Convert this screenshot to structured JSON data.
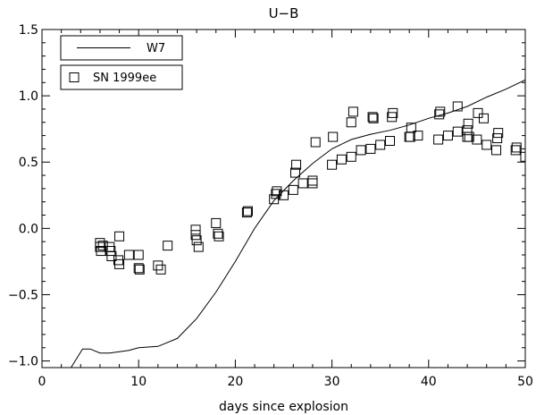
{
  "chart_data": {
    "type": "scatter",
    "title": "U−B",
    "xlabel": "days since explosion",
    "ylabel": "",
    "xlim": [
      0,
      50
    ],
    "ylim": [
      -1.05,
      1.5
    ],
    "x_ticks": [
      0,
      10,
      20,
      30,
      40,
      50
    ],
    "x_tick_labels": [
      "0",
      "10",
      "20",
      "30",
      "40",
      "50"
    ],
    "y_ticks": [
      -1.0,
      -0.5,
      0.0,
      0.5,
      1.0,
      1.5
    ],
    "y_tick_labels": [
      "−1.0",
      "−0.5",
      "0.0",
      "0.5",
      "1.0",
      "1.5"
    ],
    "legend": {
      "placement": "top-left",
      "entries": [
        "W7",
        "SN 1999ee"
      ]
    },
    "series": [
      {
        "name": "W7",
        "style": "line",
        "points": [
          [
            3,
            -1.05
          ],
          [
            4.2,
            -0.91
          ],
          [
            5,
            -0.91
          ],
          [
            6,
            -0.94
          ],
          [
            7,
            -0.94
          ],
          [
            8,
            -0.93
          ],
          [
            9,
            -0.92
          ],
          [
            10,
            -0.9
          ],
          [
            12,
            -0.89
          ],
          [
            14,
            -0.83
          ],
          [
            16,
            -0.68
          ],
          [
            18,
            -0.48
          ],
          [
            20,
            -0.25
          ],
          [
            22,
            0.0
          ],
          [
            24,
            0.21
          ],
          [
            26,
            0.36
          ],
          [
            28,
            0.49
          ],
          [
            30,
            0.6
          ],
          [
            32,
            0.67
          ],
          [
            34,
            0.71
          ],
          [
            36,
            0.74
          ],
          [
            38,
            0.78
          ],
          [
            40,
            0.83
          ],
          [
            42,
            0.87
          ],
          [
            44,
            0.92
          ],
          [
            46,
            0.99
          ],
          [
            48,
            1.05
          ],
          [
            50,
            1.12
          ]
        ]
      },
      {
        "name": "SN 1999ee",
        "style": "square-markers",
        "points": [
          [
            6.0,
            -0.11
          ],
          [
            6.0,
            -0.14
          ],
          [
            6.1,
            -0.17
          ],
          [
            6.3,
            -0.13
          ],
          [
            7.0,
            -0.14
          ],
          [
            7.1,
            -0.17
          ],
          [
            7.2,
            -0.21
          ],
          [
            7.9,
            -0.24
          ],
          [
            8.0,
            -0.27
          ],
          [
            8.0,
            -0.06
          ],
          [
            9.0,
            -0.2
          ],
          [
            10.0,
            -0.2
          ],
          [
            10.0,
            -0.3
          ],
          [
            10.1,
            -0.31
          ],
          [
            12.0,
            -0.28
          ],
          [
            12.3,
            -0.31
          ],
          [
            13.0,
            -0.13
          ],
          [
            15.9,
            -0.01
          ],
          [
            15.9,
            -0.05
          ],
          [
            16.0,
            -0.09
          ],
          [
            16.2,
            -0.14
          ],
          [
            18.0,
            0.04
          ],
          [
            18.2,
            -0.04
          ],
          [
            18.3,
            -0.06
          ],
          [
            21.2,
            0.12
          ],
          [
            21.3,
            0.13
          ],
          [
            24.0,
            0.22
          ],
          [
            24.2,
            0.26
          ],
          [
            24.3,
            0.28
          ],
          [
            25.0,
            0.25
          ],
          [
            26.0,
            0.29
          ],
          [
            26.2,
            0.42
          ],
          [
            26.3,
            0.48
          ],
          [
            27.0,
            0.34
          ],
          [
            28.0,
            0.36
          ],
          [
            28.0,
            0.34
          ],
          [
            28.3,
            0.65
          ],
          [
            30.0,
            0.48
          ],
          [
            30.1,
            0.69
          ],
          [
            31.0,
            0.52
          ],
          [
            32.0,
            0.54
          ],
          [
            32.0,
            0.8
          ],
          [
            32.2,
            0.88
          ],
          [
            33.0,
            0.59
          ],
          [
            34.0,
            0.6
          ],
          [
            34.2,
            0.84
          ],
          [
            34.3,
            0.83
          ],
          [
            35.0,
            0.63
          ],
          [
            36.0,
            0.66
          ],
          [
            36.2,
            0.84
          ],
          [
            36.3,
            0.87
          ],
          [
            38.0,
            0.69
          ],
          [
            38.1,
            0.69
          ],
          [
            38.2,
            0.76
          ],
          [
            38.9,
            0.7
          ],
          [
            41.0,
            0.67
          ],
          [
            41.1,
            0.86
          ],
          [
            41.2,
            0.88
          ],
          [
            42.0,
            0.7
          ],
          [
            43.0,
            0.73
          ],
          [
            43.0,
            0.92
          ],
          [
            44.0,
            0.69
          ],
          [
            44.0,
            0.74
          ],
          [
            44.1,
            0.79
          ],
          [
            44.2,
            0.69
          ],
          [
            45.0,
            0.67
          ],
          [
            45.1,
            0.87
          ],
          [
            45.7,
            0.83
          ],
          [
            46.0,
            0.63
          ],
          [
            47.0,
            0.59
          ],
          [
            47.1,
            0.68
          ],
          [
            47.2,
            0.72
          ],
          [
            49.0,
            0.59
          ],
          [
            49.1,
            0.61
          ],
          [
            50.0,
            0.54
          ]
        ]
      }
    ]
  }
}
